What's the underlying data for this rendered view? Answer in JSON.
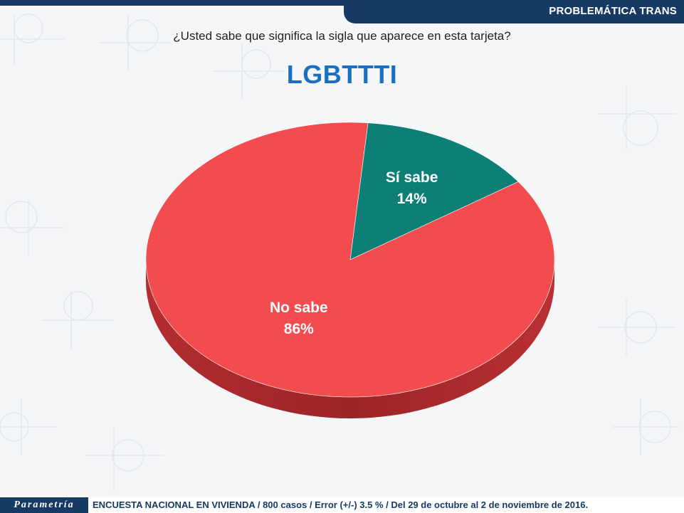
{
  "header": {
    "section_label": "PROBLEMÁTICA TRANS"
  },
  "question": "¿Usted sabe que significa la sigla que aparece en esta tarjeta?",
  "heading": "LGBTTTI",
  "chart_data": {
    "type": "pie",
    "title": "LGBTTTI",
    "slices": [
      {
        "label": "Sí sabe",
        "value": 14,
        "value_label": "14%",
        "color": "#0e7f76"
      },
      {
        "label": "No sabe",
        "value": 86,
        "value_label": "86%",
        "color": "#f24c4e"
      }
    ]
  },
  "footer": {
    "logo_text": "Parametría",
    "note": "ENCUESTA NACIONAL EN VIVIENDA / 800 casos / Error (+/-) 3.5 % / Del 29 de octubre al 2 de noviembre de 2016."
  },
  "colors": {
    "brand_navy": "#163a63",
    "heading_blue": "#1a6fbf"
  }
}
